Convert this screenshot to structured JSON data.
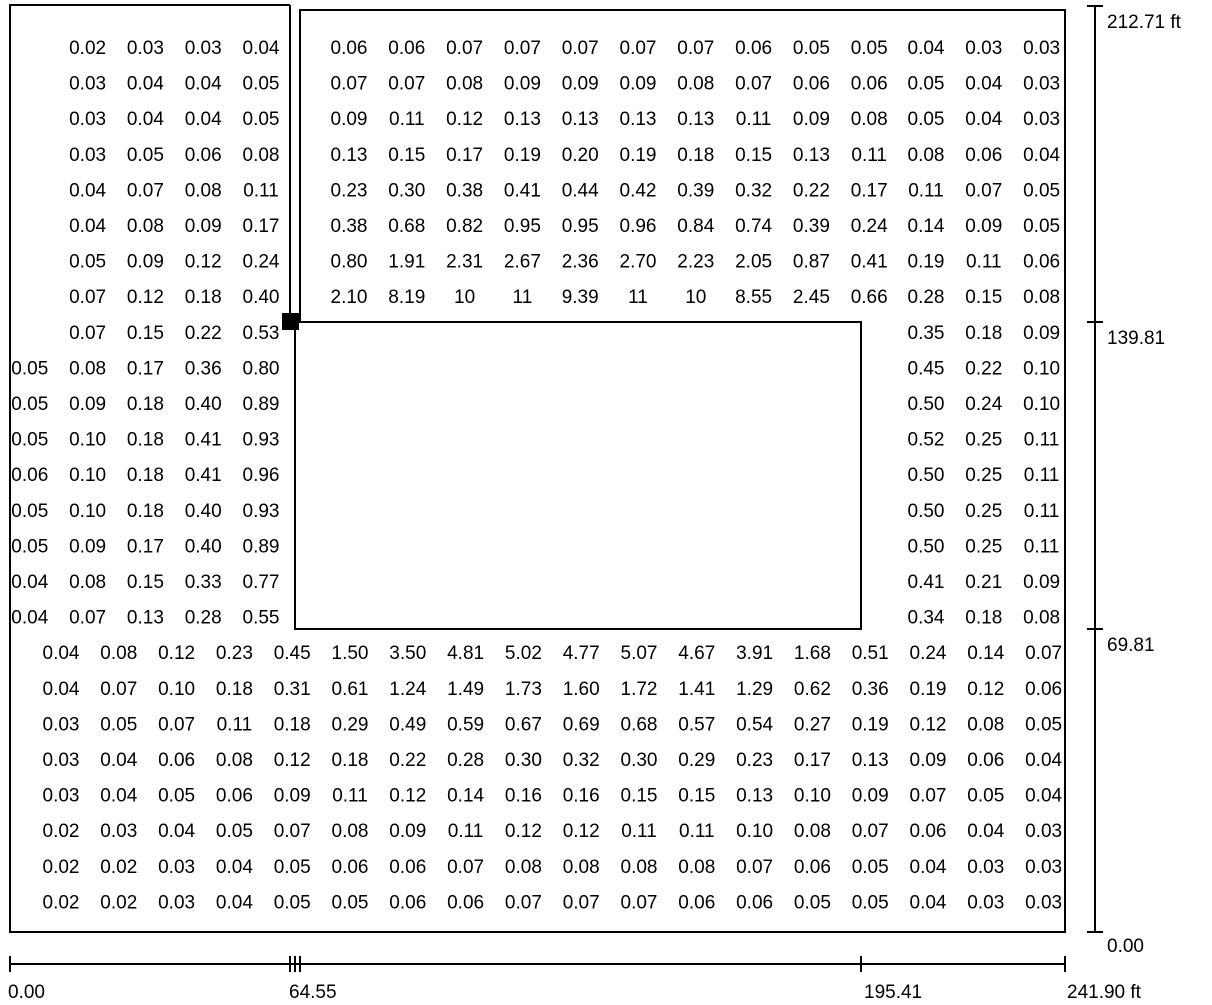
{
  "dimensions": {
    "vertical": [
      "212.71 ft",
      "139.81",
      "69.81",
      "0.00"
    ],
    "horizontal": [
      "0.00",
      "64.55",
      "195.41",
      "241.90 ft"
    ]
  },
  "rows": [
    {
      "seg": [
        [
          "0.02",
          "0.03",
          "0.03",
          "0.04"
        ],
        [
          "0.06",
          "0.06",
          "0.07",
          "0.07",
          "0.07",
          "0.07",
          "0.07",
          "0.06",
          "0.05",
          "0.05"
        ],
        [
          "0.04",
          "0.03",
          "0.03"
        ]
      ]
    },
    {
      "seg": [
        [
          "0.03",
          "0.04",
          "0.04",
          "0.05"
        ],
        [
          "0.07",
          "0.07",
          "0.08",
          "0.09",
          "0.09",
          "0.09",
          "0.08",
          "0.07",
          "0.06",
          "0.06"
        ],
        [
          "0.05",
          "0.04",
          "0.03"
        ]
      ]
    },
    {
      "seg": [
        [
          "0.03",
          "0.04",
          "0.04",
          "0.05"
        ],
        [
          "0.09",
          "0.11",
          "0.12",
          "0.13",
          "0.13",
          "0.13",
          "0.13",
          "0.11",
          "0.09",
          "0.08"
        ],
        [
          "0.05",
          "0.04",
          "0.03"
        ]
      ]
    },
    {
      "seg": [
        [
          "0.03",
          "0.05",
          "0.06",
          "0.08"
        ],
        [
          "0.13",
          "0.15",
          "0.17",
          "0.19",
          "0.20",
          "0.19",
          "0.18",
          "0.15",
          "0.13",
          "0.11"
        ],
        [
          "0.08",
          "0.06",
          "0.04"
        ]
      ]
    },
    {
      "seg": [
        [
          "0.04",
          "0.07",
          "0.08",
          "0.11"
        ],
        [
          "0.23",
          "0.30",
          "0.38",
          "0.41",
          "0.44",
          "0.42",
          "0.39",
          "0.32",
          "0.22",
          "0.17"
        ],
        [
          "0.11",
          "0.07",
          "0.05"
        ]
      ]
    },
    {
      "seg": [
        [
          "0.04",
          "0.08",
          "0.09",
          "0.17"
        ],
        [
          "0.38",
          "0.68",
          "0.82",
          "0.95",
          "0.95",
          "0.96",
          "0.84",
          "0.74",
          "0.39",
          "0.24"
        ],
        [
          "0.14",
          "0.09",
          "0.05"
        ]
      ]
    },
    {
      "seg": [
        [
          "0.05",
          "0.09",
          "0.12",
          "0.24"
        ],
        [
          "0.80",
          "1.91",
          "2.31",
          "2.67",
          "2.36",
          "2.70",
          "2.23",
          "2.05",
          "0.87",
          "0.41"
        ],
        [
          "0.19",
          "0.11",
          "0.06"
        ]
      ]
    },
    {
      "seg": [
        [
          "0.07",
          "0.12",
          "0.18",
          "0.40"
        ],
        [
          "2.10",
          "8.19",
          "10",
          "11",
          "9.39",
          "11",
          "10",
          "8.55",
          "2.45",
          "0.66"
        ],
        [
          "0.28",
          "0.15",
          "0.08"
        ]
      ]
    },
    {
      "seg": [
        [
          "0.07",
          "0.15",
          "0.22",
          "0.53"
        ],
        [],
        [
          "0.35",
          "0.18",
          "0.09"
        ]
      ]
    },
    {
      "seg": [
        [
          "0.05",
          "0.08",
          "0.17",
          "0.36",
          "0.80"
        ],
        [],
        [
          "0.45",
          "0.22",
          "0.10"
        ]
      ]
    },
    {
      "seg": [
        [
          "0.05",
          "0.09",
          "0.18",
          "0.40",
          "0.89"
        ],
        [],
        [
          "0.50",
          "0.24",
          "0.10"
        ]
      ]
    },
    {
      "seg": [
        [
          "0.05",
          "0.10",
          "0.18",
          "0.41",
          "0.93"
        ],
        [],
        [
          "0.52",
          "0.25",
          "0.11"
        ]
      ]
    },
    {
      "seg": [
        [
          "0.06",
          "0.10",
          "0.18",
          "0.41",
          "0.96"
        ],
        [],
        [
          "0.50",
          "0.25",
          "0.11"
        ]
      ]
    },
    {
      "seg": [
        [
          "0.05",
          "0.10",
          "0.18",
          "0.40",
          "0.93"
        ],
        [],
        [
          "0.50",
          "0.25",
          "0.11"
        ]
      ]
    },
    {
      "seg": [
        [
          "0.05",
          "0.09",
          "0.17",
          "0.40",
          "0.89"
        ],
        [],
        [
          "0.50",
          "0.25",
          "0.11"
        ]
      ]
    },
    {
      "seg": [
        [
          "0.04",
          "0.08",
          "0.15",
          "0.33",
          "0.77"
        ],
        [],
        [
          "0.41",
          "0.21",
          "0.09"
        ]
      ]
    },
    {
      "seg": [
        [
          "0.04",
          "0.07",
          "0.13",
          "0.28",
          "0.55"
        ],
        [],
        [
          "0.34",
          "0.18",
          "0.08"
        ]
      ]
    },
    {
      "seg": [
        [
          "0.04",
          "0.08",
          "0.12",
          "0.23",
          "0.45",
          "1.50",
          "3.50",
          "4.81",
          "5.02",
          "4.77",
          "5.07",
          "4.67",
          "3.91",
          "1.68",
          "0.51",
          "0.24",
          "0.14",
          "0.07"
        ]
      ]
    },
    {
      "seg": [
        [
          "0.04",
          "0.07",
          "0.10",
          "0.18",
          "0.31",
          "0.61",
          "1.24",
          "1.49",
          "1.73",
          "1.60",
          "1.72",
          "1.41",
          "1.29",
          "0.62",
          "0.36",
          "0.19",
          "0.12",
          "0.06"
        ]
      ]
    },
    {
      "seg": [
        [
          "0.03",
          "0.05",
          "0.07",
          "0.11",
          "0.18",
          "0.29",
          "0.49",
          "0.59",
          "0.67",
          "0.69",
          "0.68",
          "0.57",
          "0.54",
          "0.27",
          "0.19",
          "0.12",
          "0.08",
          "0.05"
        ]
      ]
    },
    {
      "seg": [
        [
          "0.03",
          "0.04",
          "0.06",
          "0.08",
          "0.12",
          "0.18",
          "0.22",
          "0.28",
          "0.30",
          "0.32",
          "0.30",
          "0.29",
          "0.23",
          "0.17",
          "0.13",
          "0.09",
          "0.06",
          "0.04"
        ]
      ]
    },
    {
      "seg": [
        [
          "0.03",
          "0.04",
          "0.05",
          "0.06",
          "0.09",
          "0.11",
          "0.12",
          "0.14",
          "0.16",
          "0.16",
          "0.15",
          "0.15",
          "0.13",
          "0.10",
          "0.09",
          "0.07",
          "0.05",
          "0.04"
        ]
      ]
    },
    {
      "seg": [
        [
          "0.02",
          "0.03",
          "0.04",
          "0.05",
          "0.07",
          "0.08",
          "0.09",
          "0.11",
          "0.12",
          "0.12",
          "0.11",
          "0.11",
          "0.10",
          "0.08",
          "0.07",
          "0.06",
          "0.04",
          "0.03"
        ]
      ]
    },
    {
      "seg": [
        [
          "0.02",
          "0.02",
          "0.03",
          "0.04",
          "0.05",
          "0.06",
          "0.06",
          "0.07",
          "0.08",
          "0.08",
          "0.08",
          "0.08",
          "0.07",
          "0.06",
          "0.05",
          "0.04",
          "0.03",
          "0.03"
        ]
      ]
    },
    {
      "seg": [
        [
          "0.02",
          "0.02",
          "0.03",
          "0.04",
          "0.05",
          "0.05",
          "0.06",
          "0.06",
          "0.07",
          "0.07",
          "0.07",
          "0.06",
          "0.06",
          "0.05",
          "0.05",
          "0.04",
          "0.03",
          "0.03"
        ]
      ]
    }
  ]
}
